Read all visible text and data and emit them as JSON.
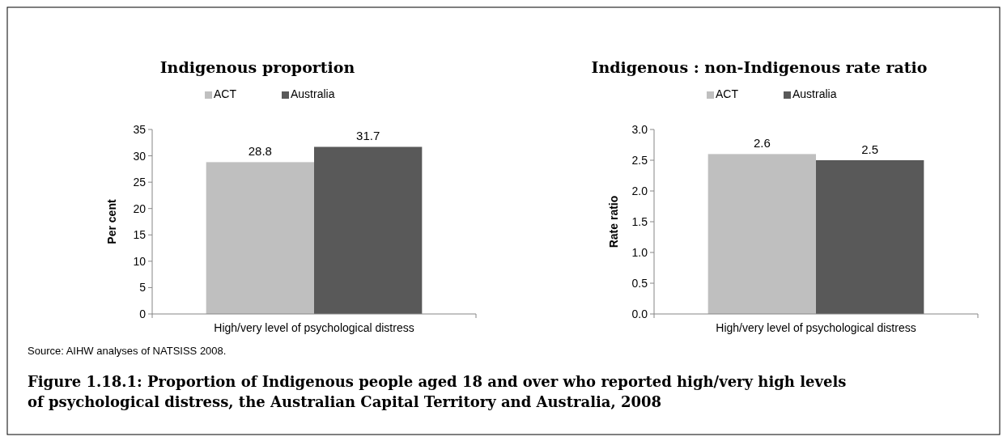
{
  "chart_data": [
    {
      "type": "bar",
      "title": "Indigenous proportion",
      "ylabel": "Per cent",
      "categories": [
        "High/very level of psychological distress"
      ],
      "series": [
        {
          "name": "ACT",
          "color": "#bfbfbf",
          "values": [
            28.8
          ]
        },
        {
          "name": "Australia",
          "color": "#595959",
          "values": [
            31.7
          ]
        }
      ],
      "ylim": [
        0,
        35
      ],
      "yticks": [
        0,
        5,
        10,
        15,
        20,
        25,
        30,
        35
      ],
      "legend": "top",
      "data_labels": true,
      "annotations": [
        "Source: AIHW analyses of NATSISS 2008.",
        "Figure 1.18.1: Proportion of Indigenous people aged 18 and over who reported high/very high levels of psychological distress, the Australian Capital Territory and Australia, 2008"
      ]
    },
    {
      "type": "bar",
      "title": "Indigenous : non-Indigenous rate ratio",
      "ylabel": "Rate ratio",
      "categories": [
        "High/very level of psychological distress"
      ],
      "series": [
        {
          "name": "ACT",
          "color": "#bfbfbf",
          "values": [
            2.6
          ]
        },
        {
          "name": "Australia",
          "color": "#595959",
          "values": [
            2.5
          ]
        }
      ],
      "ylim": [
        0,
        3
      ],
      "yticks": [
        {
          "value": 0,
          "label": "0.0"
        },
        {
          "value": 0.5,
          "label": "0.5"
        },
        {
          "value": 1,
          "label": "1.0"
        },
        {
          "value": 1.5,
          "label": "1.5"
        },
        {
          "value": 2,
          "label": "2.0"
        },
        {
          "value": 2.5,
          "label": "2.5"
        },
        {
          "value": 3,
          "label": "3.0"
        }
      ],
      "legend": "top",
      "data_labels": true
    }
  ]
}
